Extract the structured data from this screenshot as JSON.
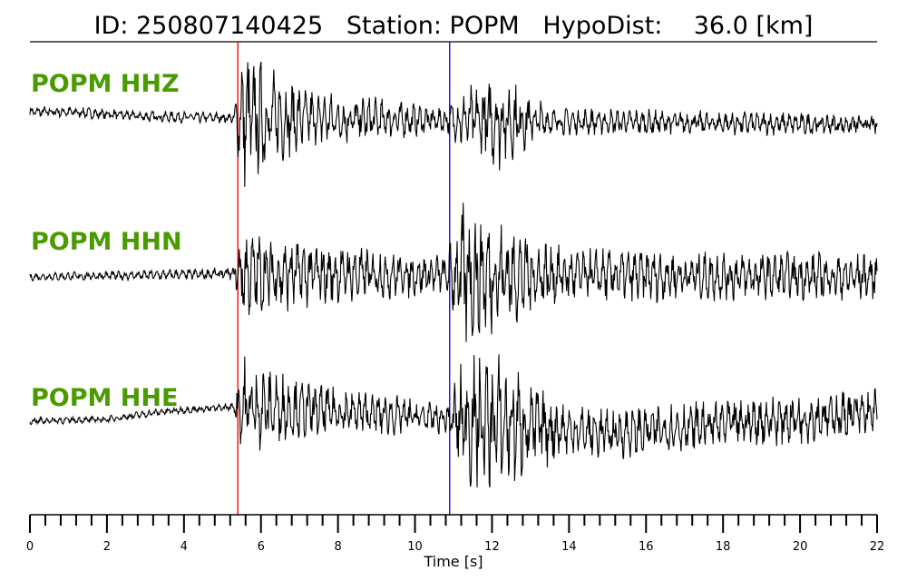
{
  "colors": {
    "label": "#4a9a00",
    "p_pick": "#e00000",
    "s_pick": "#0000e0",
    "trace": "#000000"
  },
  "chart_data": {
    "type": "line",
    "title": "ID: 250807140425   Station: POPM   HypoDist:    36.0 [km]",
    "xlabel": "Time [s]",
    "ylabel": "",
    "xlim": [
      0,
      22
    ],
    "major_ticks": [
      0,
      2,
      4,
      6,
      8,
      10,
      12,
      14,
      16,
      18,
      20,
      22
    ],
    "minor_tick_step": 0.4,
    "grid": false,
    "picks": [
      {
        "phase": "P",
        "time": 5.4
      },
      {
        "phase": "S",
        "time": 10.9
      }
    ],
    "traces": [
      {
        "name": "POPM HHZ",
        "envelope": [
          [
            0,
            0.08
          ],
          [
            5.3,
            0.08
          ],
          [
            5.5,
            1.0
          ],
          [
            7,
            0.45
          ],
          [
            10.8,
            0.18
          ],
          [
            11.3,
            0.45
          ],
          [
            12.2,
            0.7
          ],
          [
            13.5,
            0.2
          ],
          [
            22,
            0.15
          ]
        ],
        "baseline": [
          [
            0,
            0.2
          ],
          [
            1,
            0.2
          ],
          [
            3,
            0.05
          ],
          [
            5.4,
            0.0
          ],
          [
            22,
            -0.22
          ]
        ]
      },
      {
        "name": "POPM HHN",
        "envelope": [
          [
            0,
            0.05
          ],
          [
            5.3,
            0.08
          ],
          [
            5.5,
            0.6
          ],
          [
            7,
            0.45
          ],
          [
            10.8,
            0.25
          ],
          [
            11.3,
            1.0
          ],
          [
            12.2,
            0.7
          ],
          [
            14,
            0.35
          ],
          [
            22,
            0.3
          ]
        ],
        "baseline": [
          [
            0,
            0.0
          ],
          [
            3,
            0.05
          ],
          [
            5.4,
            0.1
          ],
          [
            22,
            0.0
          ]
        ]
      },
      {
        "name": "POPM HHE",
        "envelope": [
          [
            0,
            0.05
          ],
          [
            5.3,
            0.05
          ],
          [
            5.5,
            0.7
          ],
          [
            7,
            0.4
          ],
          [
            10.8,
            0.2
          ],
          [
            11.3,
            0.9
          ],
          [
            12.2,
            0.95
          ],
          [
            14,
            0.35
          ],
          [
            22,
            0.35
          ]
        ],
        "baseline": [
          [
            0,
            -0.05
          ],
          [
            2,
            0.0
          ],
          [
            3.5,
            0.25
          ],
          [
            5.4,
            0.4
          ],
          [
            8,
            0.25
          ],
          [
            11,
            0.0
          ],
          [
            15,
            -0.45
          ],
          [
            19,
            -0.05
          ],
          [
            22,
            0.2
          ]
        ]
      }
    ]
  }
}
